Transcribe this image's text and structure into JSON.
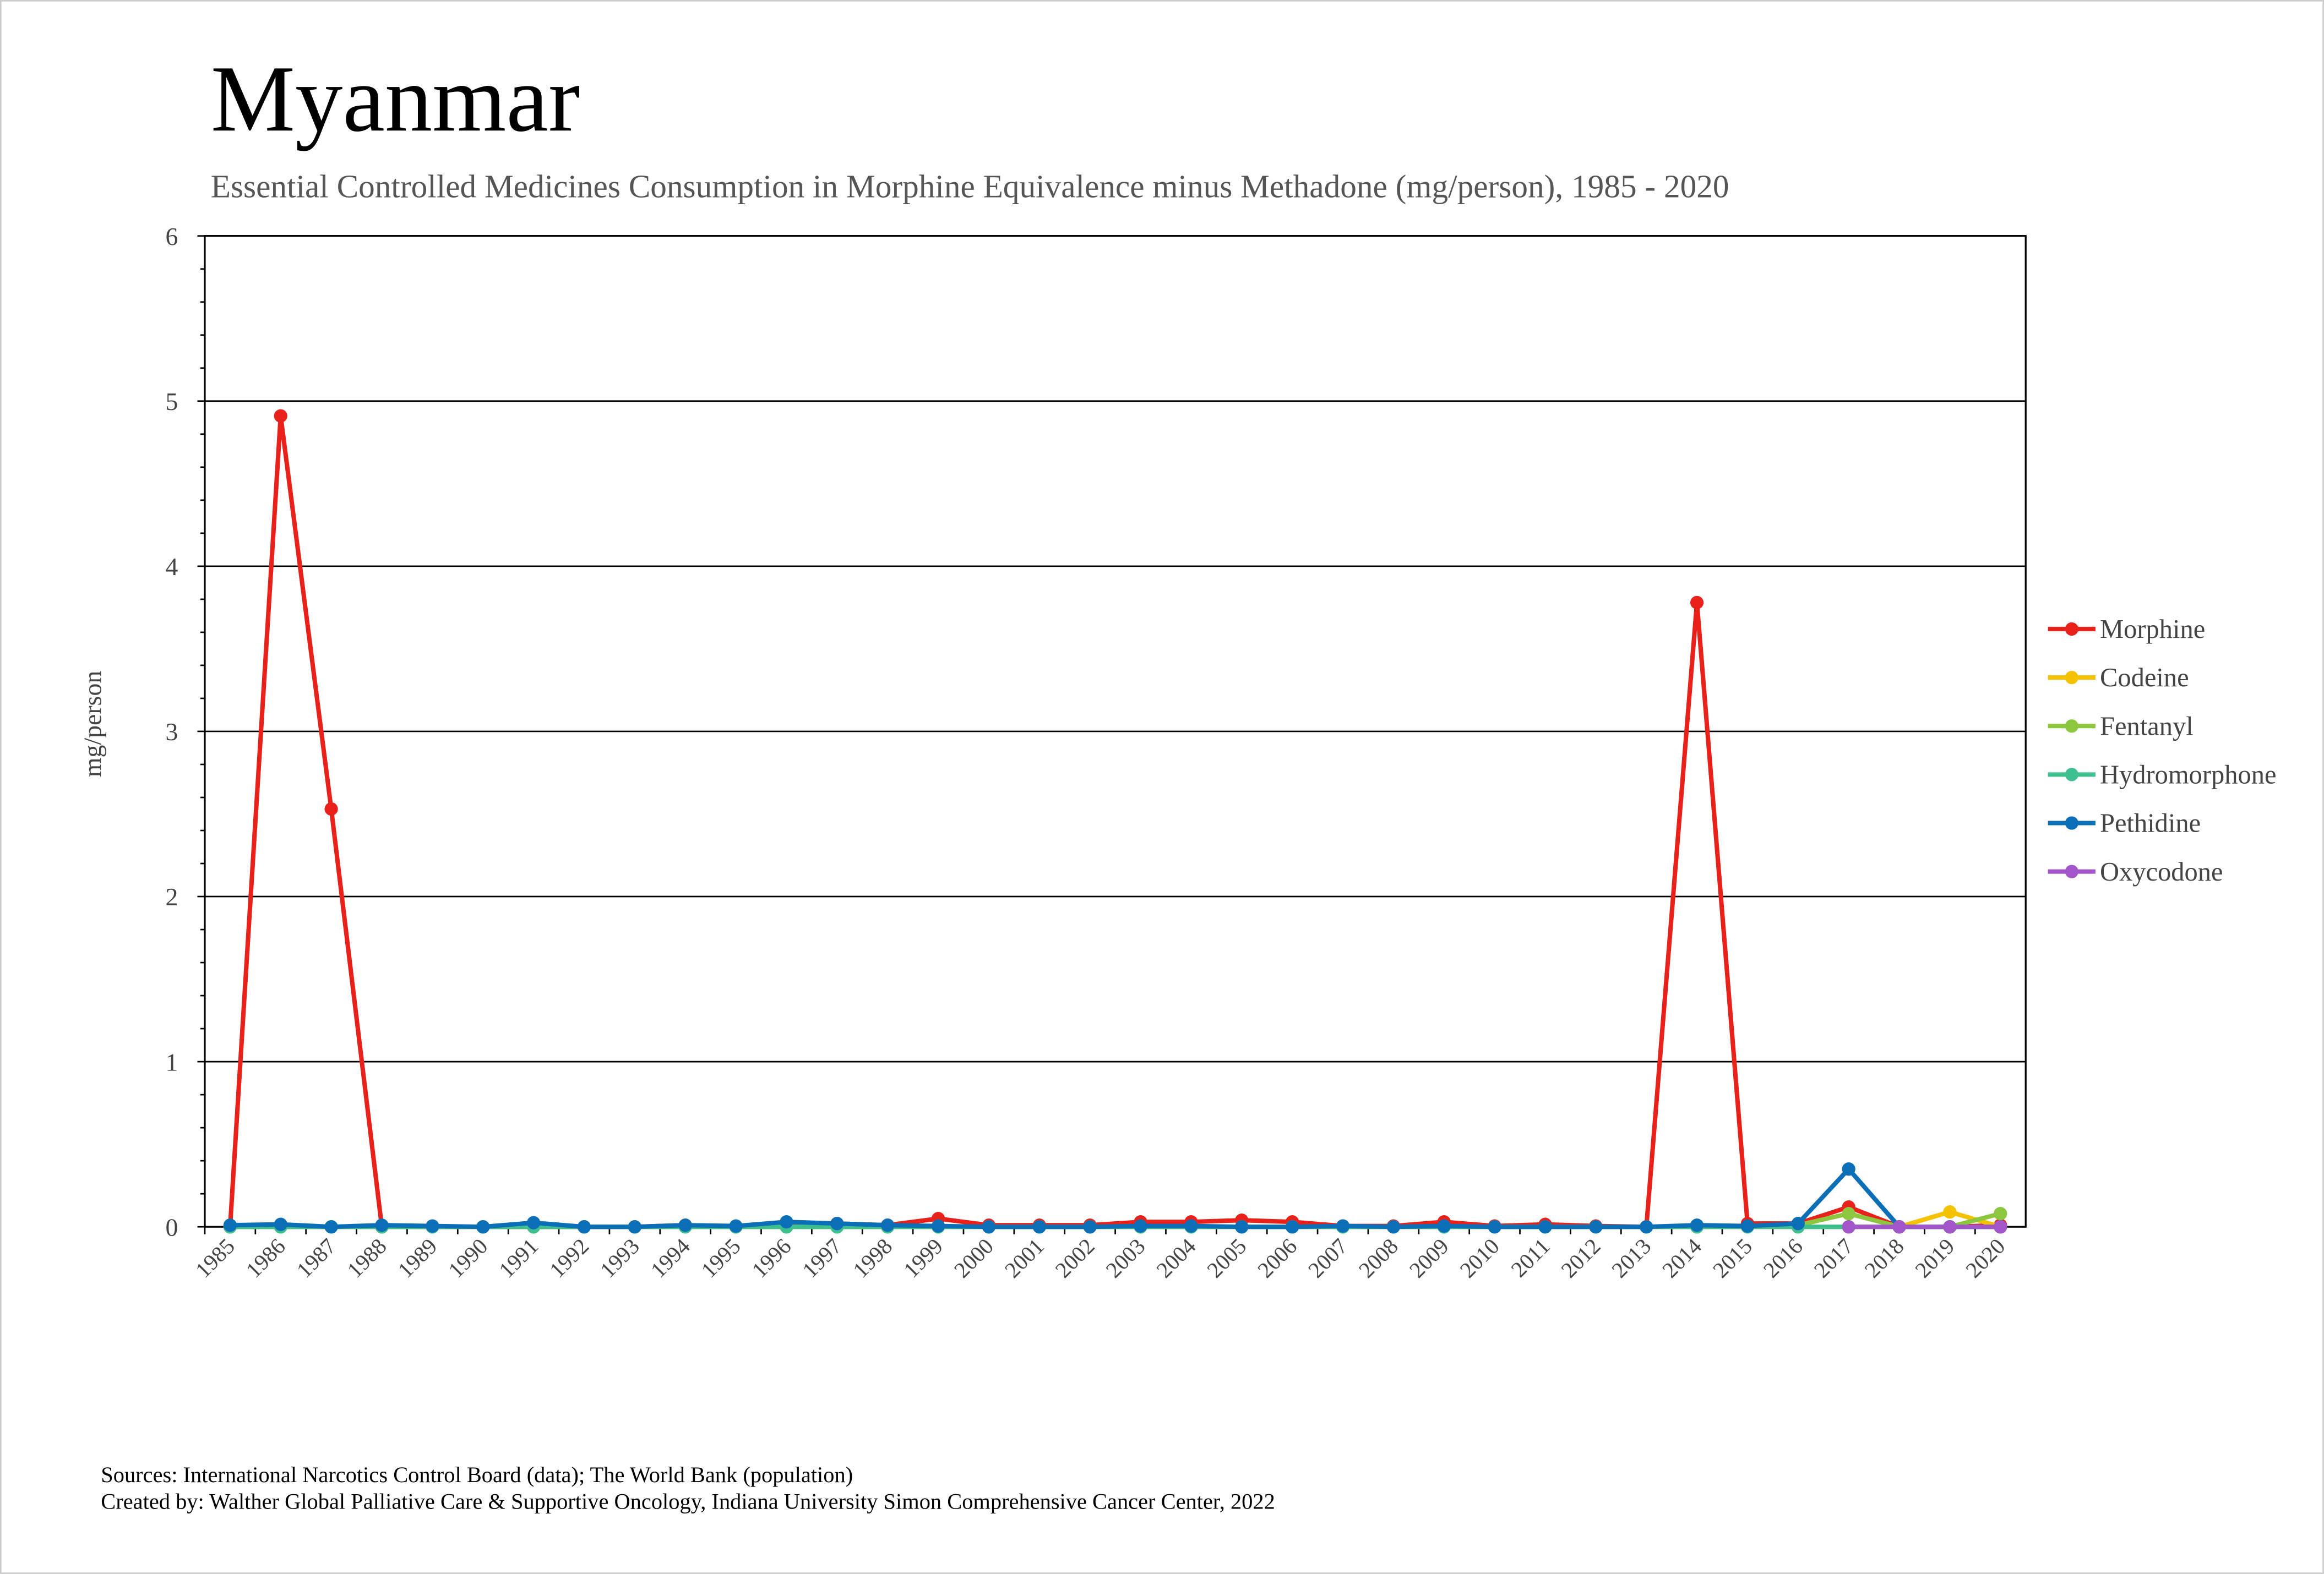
{
  "chart_data": {
    "type": "line",
    "title": "Myanmar",
    "subtitle": "Essential Controlled Medicines Consumption in Morphine Equivalence minus Methadone (mg/person), 1985 - 2020",
    "y_label": "mg/person",
    "categories": [
      "1985",
      "1986",
      "1987",
      "1988",
      "1989",
      "1990",
      "1991",
      "1992",
      "1993",
      "1994",
      "1995",
      "1996",
      "1997",
      "1998",
      "1999",
      "2000",
      "2001",
      "2002",
      "2003",
      "2004",
      "2005",
      "2006",
      "2007",
      "2008",
      "2009",
      "2010",
      "2011",
      "2012",
      "2013",
      "2014",
      "2015",
      "2016",
      "2017",
      "2018",
      "2019",
      "2020"
    ],
    "series": [
      {
        "name": "Morphine",
        "color": "#e8221b",
        "values": [
          0,
          4.91,
          2.53,
          0,
          0,
          0,
          0,
          0,
          0,
          0.01,
          0,
          0.02,
          0.02,
          0.01,
          0.05,
          0.01,
          0.01,
          0.01,
          0.03,
          0.03,
          0.04,
          0.03,
          0.005,
          0.005,
          0.03,
          0.005,
          0.015,
          0.005,
          0,
          3.78,
          0.02,
          0.02,
          0.12,
          0,
          0,
          0.01
        ]
      },
      {
        "name": "Codeine",
        "color": "#f5c200",
        "values": [
          0,
          0,
          0,
          0,
          0,
          0,
          0,
          0,
          0,
          0,
          0,
          0,
          0,
          0,
          0,
          0,
          0,
          0,
          0,
          0,
          0,
          0,
          0,
          0,
          0,
          0,
          0,
          0,
          0,
          0,
          0,
          0,
          0,
          0,
          0.09,
          0
        ]
      },
      {
        "name": "Fentanyl",
        "color": "#8dc63f",
        "values": [
          0,
          0,
          0,
          0,
          0,
          0,
          0,
          0,
          0,
          0,
          0,
          0,
          0,
          0,
          0,
          0,
          0,
          0,
          0,
          0,
          0,
          0,
          0,
          0,
          0,
          0,
          0,
          0,
          0,
          0,
          0,
          0.01,
          0.08,
          0,
          0,
          0.08
        ]
      },
      {
        "name": "Hydromorphone",
        "color": "#3dbf8f",
        "values": [
          0,
          0,
          0,
          0,
          0,
          0,
          0,
          0,
          0,
          0,
          0,
          0,
          0,
          0,
          0,
          0,
          0,
          0,
          0,
          0,
          0,
          0,
          0,
          0,
          0,
          0,
          0,
          0,
          0,
          0,
          0,
          0,
          0,
          0,
          0,
          0
        ]
      },
      {
        "name": "Pethidine",
        "color": "#0b6fb8",
        "values": [
          0.01,
          0.015,
          0,
          0.01,
          0.005,
          0,
          0.025,
          0,
          0,
          0.01,
          0.005,
          0.03,
          0.02,
          0.01,
          0.005,
          0,
          0,
          0,
          0.005,
          0.005,
          0,
          0,
          0.005,
          0,
          0.005,
          0,
          0,
          0,
          0,
          0.01,
          0.005,
          0.02,
          0.35,
          0,
          0,
          0
        ]
      },
      {
        "name": "Oxycodone",
        "color": "#a256c9",
        "values": [
          null,
          null,
          null,
          null,
          null,
          null,
          null,
          null,
          null,
          null,
          null,
          null,
          null,
          null,
          null,
          null,
          null,
          null,
          null,
          null,
          null,
          null,
          null,
          null,
          null,
          null,
          null,
          null,
          null,
          null,
          null,
          null,
          0,
          0,
          0,
          0
        ]
      }
    ],
    "ylim": [
      0,
      6
    ],
    "yticks": [
      0,
      1,
      2,
      3,
      4,
      5,
      6
    ],
    "grid": true,
    "legend": "right",
    "footer": [
      "Sources: International Narcotics Control Board (data); The World Bank (population)",
      "Created by: Walther Global Palliative Care & Supportive Oncology, Indiana University Simon Comprehensive Cancer Center, 2022"
    ]
  }
}
